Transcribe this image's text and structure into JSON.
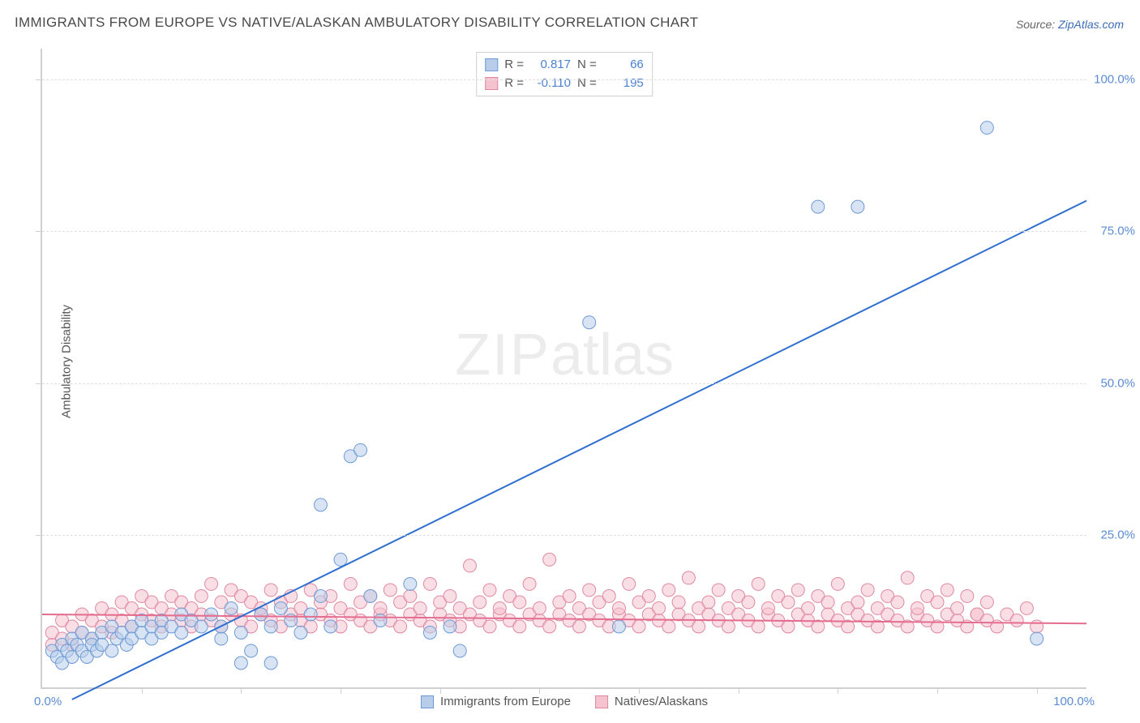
{
  "title": "IMMIGRANTS FROM EUROPE VS NATIVE/ALASKAN AMBULATORY DISABILITY CORRELATION CHART",
  "source_prefix": "Source: ",
  "source_link": "ZipAtlas.com",
  "y_axis_label": "Ambulatory Disability",
  "watermark_zip": "ZIP",
  "watermark_atlas": "atlas",
  "chart": {
    "type": "scatter",
    "xlim": [
      0,
      105
    ],
    "ylim": [
      0,
      105
    ],
    "y_ticks": [
      25,
      50,
      75,
      100
    ],
    "y_tick_labels": [
      "25.0%",
      "50.0%",
      "75.0%",
      "100.0%"
    ],
    "x_ticks": [
      10,
      20,
      30,
      40,
      50,
      60,
      70,
      80,
      90,
      100
    ],
    "zero_label": "0.0%",
    "x_max_label": "100.0%",
    "grid_color": "#e0e0e0",
    "axis_color": "#d0d0d0",
    "background_color": "#ffffff",
    "tick_label_color": "#5b8bd4",
    "tick_label_fontsize": 15,
    "title_fontsize": 17,
    "axis_label_fontsize": 15,
    "marker_radius": 8,
    "marker_stroke_width": 1,
    "trend_line_width": 2,
    "series": [
      {
        "name": "Immigrants from Europe",
        "fill_color": "#b8cdea",
        "stroke_color": "#6d9ad6",
        "fill_opacity": 0.55,
        "R": "0.817",
        "N": "66",
        "trend": {
          "x1": 3,
          "y1": -2,
          "x2": 105,
          "y2": 80,
          "color": "#2f6fd0"
        },
        "points": [
          [
            1,
            6
          ],
          [
            1.5,
            5
          ],
          [
            2,
            7
          ],
          [
            2,
            4
          ],
          [
            2.5,
            6
          ],
          [
            3,
            8
          ],
          [
            3,
            5
          ],
          [
            3.5,
            7
          ],
          [
            4,
            6
          ],
          [
            4,
            9
          ],
          [
            4.5,
            5
          ],
          [
            5,
            8
          ],
          [
            5,
            7
          ],
          [
            5.5,
            6
          ],
          [
            6,
            9
          ],
          [
            6,
            7
          ],
          [
            7,
            6
          ],
          [
            7,
            10
          ],
          [
            7.5,
            8
          ],
          [
            8,
            9
          ],
          [
            8.5,
            7
          ],
          [
            9,
            10
          ],
          [
            9,
            8
          ],
          [
            10,
            9
          ],
          [
            10,
            11
          ],
          [
            11,
            8
          ],
          [
            11,
            10
          ],
          [
            12,
            11
          ],
          [
            12,
            9
          ],
          [
            13,
            10
          ],
          [
            14,
            9
          ],
          [
            14,
            12
          ],
          [
            15,
            11
          ],
          [
            16,
            10
          ],
          [
            17,
            12
          ],
          [
            18,
            8
          ],
          [
            18,
            10
          ],
          [
            19,
            13
          ],
          [
            20,
            4
          ],
          [
            20,
            9
          ],
          [
            21,
            6
          ],
          [
            22,
            12
          ],
          [
            23,
            10
          ],
          [
            23,
            4
          ],
          [
            24,
            13
          ],
          [
            25,
            11
          ],
          [
            26,
            9
          ],
          [
            27,
            12
          ],
          [
            28,
            15
          ],
          [
            28,
            30
          ],
          [
            29,
            10
          ],
          [
            30,
            21
          ],
          [
            31,
            38
          ],
          [
            32,
            39
          ],
          [
            33,
            15
          ],
          [
            34,
            11
          ],
          [
            37,
            17
          ],
          [
            39,
            9
          ],
          [
            41,
            10
          ],
          [
            42,
            6
          ],
          [
            55,
            60
          ],
          [
            58,
            10
          ],
          [
            78,
            79
          ],
          [
            82,
            79
          ],
          [
            95,
            92
          ],
          [
            100,
            8
          ]
        ]
      },
      {
        "name": "Natives/Alaskans",
        "fill_color": "#f5c3cf",
        "stroke_color": "#e088a0",
        "fill_opacity": 0.55,
        "R": "-0.110",
        "N": "195",
        "trend": {
          "x1": 0,
          "y1": 12,
          "x2": 105,
          "y2": 10.5,
          "color": "#e46d8f"
        },
        "points": [
          [
            1,
            7
          ],
          [
            1,
            9
          ],
          [
            2,
            8
          ],
          [
            2,
            11
          ],
          [
            3,
            7
          ],
          [
            3,
            10
          ],
          [
            4,
            9
          ],
          [
            4,
            12
          ],
          [
            5,
            8
          ],
          [
            5,
            11
          ],
          [
            6,
            10
          ],
          [
            6,
            13
          ],
          [
            7,
            9
          ],
          [
            7,
            12
          ],
          [
            8,
            11
          ],
          [
            8,
            14
          ],
          [
            9,
            10
          ],
          [
            9,
            13
          ],
          [
            10,
            12
          ],
          [
            10,
            15
          ],
          [
            11,
            11
          ],
          [
            11,
            14
          ],
          [
            12,
            10
          ],
          [
            12,
            13
          ],
          [
            13,
            12
          ],
          [
            13,
            15
          ],
          [
            14,
            11
          ],
          [
            14,
            14
          ],
          [
            15,
            10
          ],
          [
            15,
            13
          ],
          [
            16,
            12
          ],
          [
            16,
            15
          ],
          [
            17,
            11
          ],
          [
            17,
            17
          ],
          [
            18,
            10
          ],
          [
            18,
            14
          ],
          [
            19,
            12
          ],
          [
            19,
            16
          ],
          [
            20,
            11
          ],
          [
            20,
            15
          ],
          [
            21,
            10
          ],
          [
            21,
            14
          ],
          [
            22,
            12
          ],
          [
            22,
            13
          ],
          [
            23,
            11
          ],
          [
            23,
            16
          ],
          [
            24,
            10
          ],
          [
            24,
            14
          ],
          [
            25,
            12
          ],
          [
            25,
            15
          ],
          [
            26,
            11
          ],
          [
            26,
            13
          ],
          [
            27,
            10
          ],
          [
            27,
            16
          ],
          [
            28,
            12
          ],
          [
            28,
            14
          ],
          [
            29,
            11
          ],
          [
            29,
            15
          ],
          [
            30,
            10
          ],
          [
            30,
            13
          ],
          [
            31,
            12
          ],
          [
            31,
            17
          ],
          [
            32,
            11
          ],
          [
            32,
            14
          ],
          [
            33,
            10
          ],
          [
            33,
            15
          ],
          [
            34,
            12
          ],
          [
            34,
            13
          ],
          [
            35,
            11
          ],
          [
            35,
            16
          ],
          [
            36,
            10
          ],
          [
            36,
            14
          ],
          [
            37,
            12
          ],
          [
            37,
            15
          ],
          [
            38,
            11
          ],
          [
            38,
            13
          ],
          [
            39,
            10
          ],
          [
            39,
            17
          ],
          [
            40,
            12
          ],
          [
            40,
            14
          ],
          [
            41,
            11
          ],
          [
            41,
            15
          ],
          [
            42,
            10
          ],
          [
            42,
            13
          ],
          [
            43,
            12
          ],
          [
            43,
            20
          ],
          [
            44,
            11
          ],
          [
            44,
            14
          ],
          [
            45,
            10
          ],
          [
            45,
            16
          ],
          [
            46,
            12
          ],
          [
            46,
            13
          ],
          [
            47,
            11
          ],
          [
            47,
            15
          ],
          [
            48,
            10
          ],
          [
            48,
            14
          ],
          [
            49,
            12
          ],
          [
            49,
            17
          ],
          [
            50,
            11
          ],
          [
            50,
            13
          ],
          [
            51,
            10
          ],
          [
            51,
            21
          ],
          [
            52,
            12
          ],
          [
            52,
            14
          ],
          [
            53,
            11
          ],
          [
            53,
            15
          ],
          [
            54,
            10
          ],
          [
            54,
            13
          ],
          [
            55,
            12
          ],
          [
            55,
            16
          ],
          [
            56,
            11
          ],
          [
            56,
            14
          ],
          [
            57,
            10
          ],
          [
            57,
            15
          ],
          [
            58,
            12
          ],
          [
            58,
            13
          ],
          [
            59,
            11
          ],
          [
            59,
            17
          ],
          [
            60,
            10
          ],
          [
            60,
            14
          ],
          [
            61,
            12
          ],
          [
            61,
            15
          ],
          [
            62,
            11
          ],
          [
            62,
            13
          ],
          [
            63,
            10
          ],
          [
            63,
            16
          ],
          [
            64,
            12
          ],
          [
            64,
            14
          ],
          [
            65,
            11
          ],
          [
            65,
            18
          ],
          [
            66,
            10
          ],
          [
            66,
            13
          ],
          [
            67,
            12
          ],
          [
            67,
            14
          ],
          [
            68,
            11
          ],
          [
            68,
            16
          ],
          [
            69,
            10
          ],
          [
            69,
            13
          ],
          [
            70,
            12
          ],
          [
            70,
            15
          ],
          [
            71,
            11
          ],
          [
            71,
            14
          ],
          [
            72,
            10
          ],
          [
            72,
            17
          ],
          [
            73,
            12
          ],
          [
            73,
            13
          ],
          [
            74,
            11
          ],
          [
            74,
            15
          ],
          [
            75,
            10
          ],
          [
            75,
            14
          ],
          [
            76,
            12
          ],
          [
            76,
            16
          ],
          [
            77,
            11
          ],
          [
            77,
            13
          ],
          [
            78,
            10
          ],
          [
            78,
            15
          ],
          [
            79,
            12
          ],
          [
            79,
            14
          ],
          [
            80,
            11
          ],
          [
            80,
            17
          ],
          [
            81,
            10
          ],
          [
            81,
            13
          ],
          [
            82,
            12
          ],
          [
            82,
            14
          ],
          [
            83,
            11
          ],
          [
            83,
            16
          ],
          [
            84,
            10
          ],
          [
            84,
            13
          ],
          [
            85,
            12
          ],
          [
            85,
            15
          ],
          [
            86,
            11
          ],
          [
            86,
            14
          ],
          [
            87,
            10
          ],
          [
            87,
            18
          ],
          [
            88,
            12
          ],
          [
            88,
            13
          ],
          [
            89,
            11
          ],
          [
            89,
            15
          ],
          [
            90,
            10
          ],
          [
            90,
            14
          ],
          [
            91,
            12
          ],
          [
            91,
            16
          ],
          [
            92,
            11
          ],
          [
            92,
            13
          ],
          [
            93,
            10
          ],
          [
            93,
            15
          ],
          [
            94,
            12
          ],
          [
            94,
            12
          ],
          [
            95,
            11
          ],
          [
            95,
            14
          ],
          [
            96,
            10
          ],
          [
            97,
            12
          ],
          [
            98,
            11
          ],
          [
            99,
            13
          ],
          [
            100,
            10
          ]
        ]
      }
    ]
  },
  "stats_labels": {
    "R": "R =",
    "N": "N ="
  },
  "legend": {
    "series1_label": "Immigrants from Europe",
    "series2_label": "Natives/Alaskans"
  }
}
